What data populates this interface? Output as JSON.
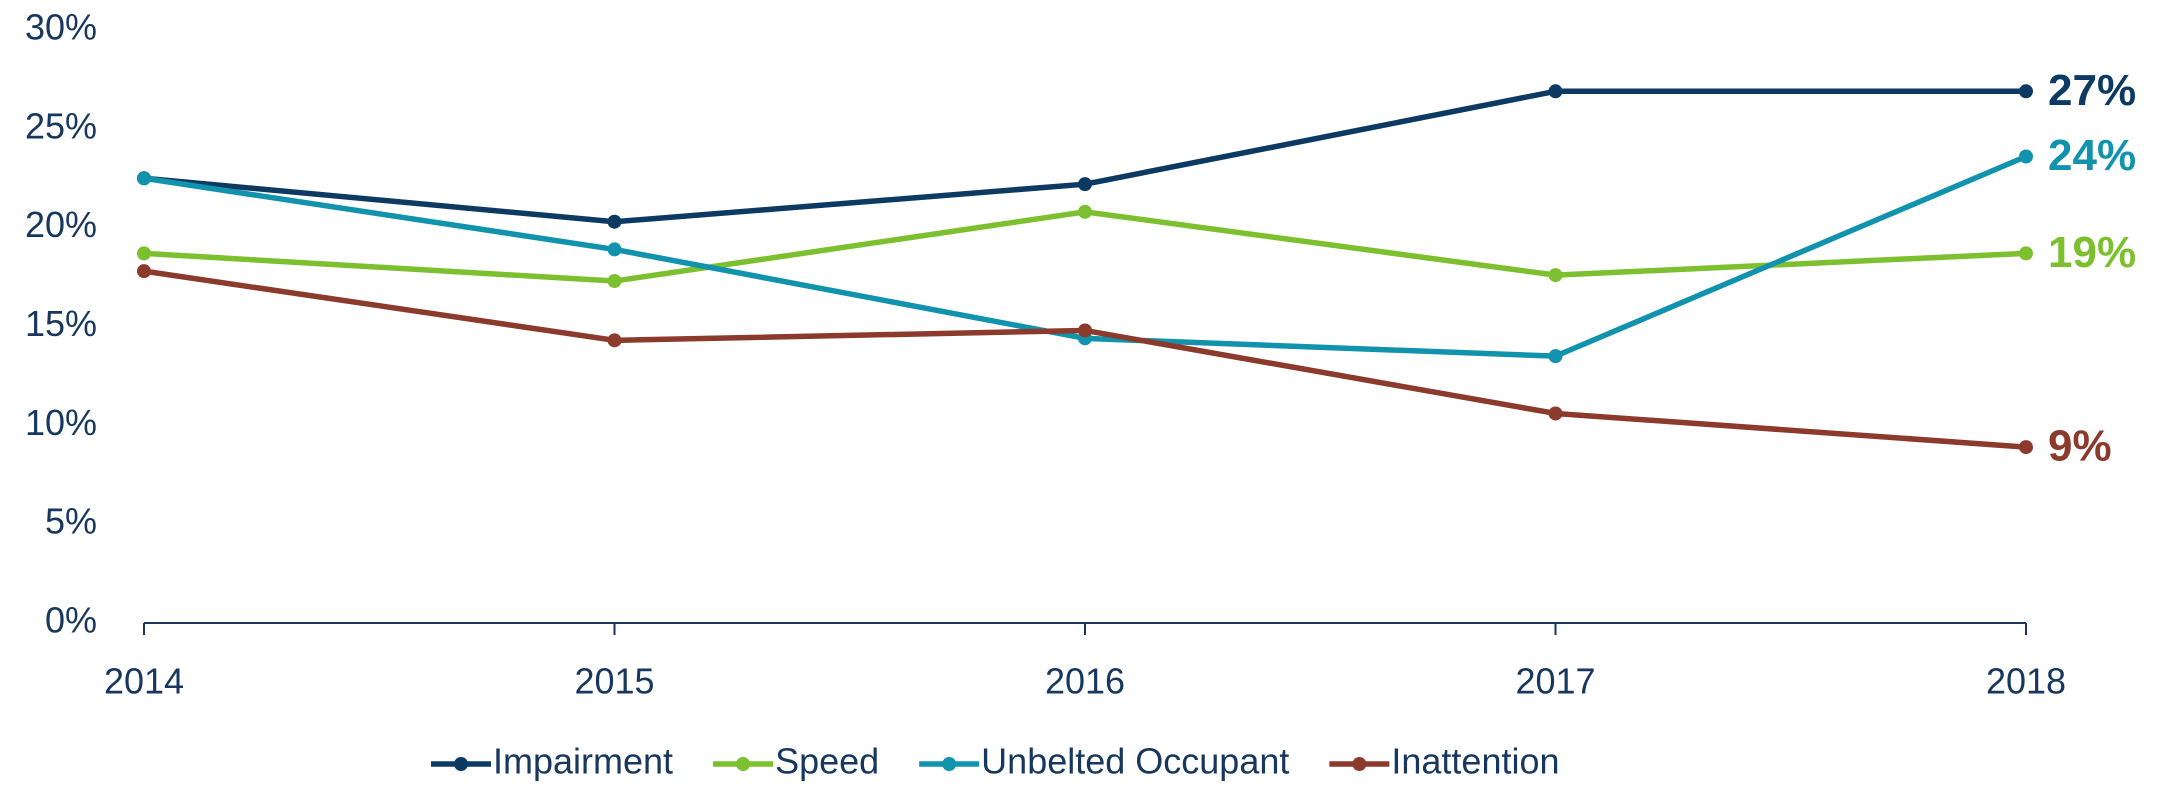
{
  "chart_data": {
    "type": "line",
    "categories": [
      "2014",
      "2015",
      "2016",
      "2017",
      "2018"
    ],
    "series": [
      {
        "name": "Impairment",
        "color": "#0d3a63",
        "values": [
          22.5,
          20.3,
          22.2,
          26.9,
          26.9
        ],
        "value_labels": [
          null,
          null,
          null,
          null,
          "27%"
        ]
      },
      {
        "name": "Speed",
        "color": "#7dc02f",
        "values": [
          18.7,
          17.3,
          20.8,
          17.6,
          18.7
        ],
        "value_labels": [
          null,
          null,
          null,
          null,
          "19%"
        ]
      },
      {
        "name": "Unbelted Occupant",
        "color": "#1193ad",
        "values": [
          22.5,
          18.9,
          14.4,
          13.5,
          23.6
        ],
        "value_labels": [
          null,
          null,
          null,
          null,
          "24%"
        ]
      },
      {
        "name": "Inattention",
        "color": "#8b3a2b",
        "values": [
          17.8,
          14.3,
          14.8,
          10.6,
          8.9
        ],
        "value_labels": [
          null,
          null,
          null,
          null,
          "9%"
        ]
      }
    ],
    "ylim": [
      0,
      30
    ],
    "yticks": [
      {
        "value": 0,
        "label": "0%"
      },
      {
        "value": 5,
        "label": "5%"
      },
      {
        "value": 10,
        "label": "10%"
      },
      {
        "value": 15,
        "label": "15%"
      },
      {
        "value": 20,
        "label": "20%"
      },
      {
        "value": 25,
        "label": "25%"
      },
      {
        "value": 30,
        "label": "30%"
      }
    ],
    "grid": false,
    "legend": "bottom"
  }
}
